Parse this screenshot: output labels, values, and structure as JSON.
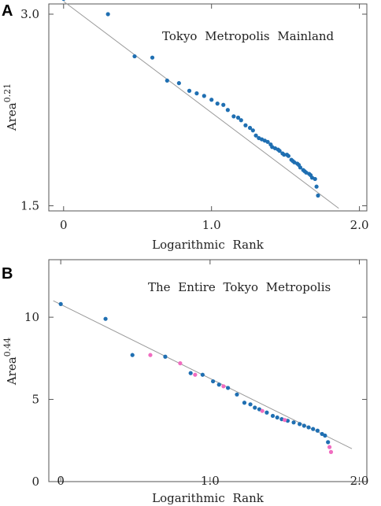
{
  "colors": {
    "blue": "#1f6fb2",
    "pink": "#f06cc0",
    "line": "#9a9a9a",
    "frame": "#555555"
  },
  "chart_data": [
    {
      "panel": "A",
      "type": "scatter",
      "title": "Tokyo Metropolis Mainland",
      "xlabel": "Logarithmic Rank",
      "ylabel_base": "Area",
      "ylabel_exp": "0.21",
      "xlim": [
        -0.1,
        2.05
      ],
      "ylim": [
        1.46,
        3.08
      ],
      "xticks": [
        0,
        1.0,
        2.0
      ],
      "xtick_labels": [
        "0",
        "1.0",
        "2.0"
      ],
      "yticks": [
        3.0,
        1.5
      ],
      "ytick_labels": [
        "3.0",
        "1.5"
      ],
      "fit_line": [
        [
          0.0,
          3.1
        ],
        [
          1.86,
          1.48
        ]
      ],
      "series": [
        {
          "color": "blue",
          "points": [
            [
              0.0,
              3.12
            ],
            [
              0.3,
              3.0
            ],
            [
              0.48,
              2.67
            ],
            [
              0.6,
              2.66
            ],
            [
              0.7,
              2.48
            ],
            [
              0.78,
              2.46
            ],
            [
              0.85,
              2.4
            ],
            [
              0.9,
              2.38
            ],
            [
              0.95,
              2.36
            ],
            [
              1.0,
              2.33
            ],
            [
              1.04,
              2.3
            ],
            [
              1.08,
              2.29
            ],
            [
              1.11,
              2.25
            ],
            [
              1.15,
              2.2
            ],
            [
              1.18,
              2.19
            ],
            [
              1.2,
              2.17
            ],
            [
              1.23,
              2.13
            ],
            [
              1.26,
              2.11
            ],
            [
              1.28,
              2.09
            ],
            [
              1.3,
              2.05
            ],
            [
              1.32,
              2.03
            ],
            [
              1.34,
              2.02
            ],
            [
              1.36,
              2.01
            ],
            [
              1.38,
              2.0
            ],
            [
              1.4,
              1.98
            ],
            [
              1.41,
              1.96
            ],
            [
              1.43,
              1.95
            ],
            [
              1.45,
              1.94
            ],
            [
              1.46,
              1.93
            ],
            [
              1.48,
              1.91
            ],
            [
              1.49,
              1.9
            ],
            [
              1.51,
              1.9
            ],
            [
              1.52,
              1.89
            ],
            [
              1.54,
              1.86
            ],
            [
              1.55,
              1.85
            ],
            [
              1.56,
              1.84
            ],
            [
              1.58,
              1.83
            ],
            [
              1.59,
              1.82
            ],
            [
              1.6,
              1.8
            ],
            [
              1.62,
              1.78
            ],
            [
              1.63,
              1.77
            ],
            [
              1.64,
              1.76
            ],
            [
              1.66,
              1.75
            ],
            [
              1.67,
              1.74
            ],
            [
              1.68,
              1.72
            ],
            [
              1.7,
              1.71
            ],
            [
              1.71,
              1.65
            ],
            [
              1.72,
              1.58
            ]
          ]
        }
      ]
    },
    {
      "panel": "B",
      "type": "scatter",
      "title": "The Entire Tokyo Metropolis",
      "xlabel": "Logarithmic Rank",
      "ylabel_base": "Area",
      "ylabel_exp": "0.44",
      "xlim": [
        -0.08,
        2.05
      ],
      "ylim": [
        0,
        13.5
      ],
      "xticks": [
        0,
        1.0,
        2.0
      ],
      "xtick_labels": [
        "0",
        "1.0",
        "2.0"
      ],
      "yticks": [
        10,
        5,
        0
      ],
      "ytick_labels": [
        "10",
        "5",
        "0"
      ],
      "fit_line": [
        [
          -0.05,
          11.0
        ],
        [
          1.95,
          2.0
        ]
      ],
      "series": [
        {
          "color": "blue",
          "points": [
            [
              0.0,
              10.8
            ],
            [
              0.3,
              9.9
            ],
            [
              0.48,
              7.7
            ],
            [
              0.7,
              7.6
            ],
            [
              0.87,
              6.6
            ],
            [
              0.95,
              6.5
            ],
            [
              1.02,
              6.1
            ],
            [
              1.06,
              5.9
            ],
            [
              1.12,
              5.7
            ],
            [
              1.18,
              5.3
            ],
            [
              1.23,
              4.8
            ],
            [
              1.27,
              4.7
            ],
            [
              1.3,
              4.5
            ],
            [
              1.33,
              4.4
            ],
            [
              1.38,
              4.2
            ],
            [
              1.42,
              4.0
            ],
            [
              1.45,
              3.9
            ],
            [
              1.48,
              3.8
            ],
            [
              1.52,
              3.7
            ],
            [
              1.56,
              3.6
            ],
            [
              1.6,
              3.5
            ],
            [
              1.63,
              3.4
            ],
            [
              1.66,
              3.3
            ],
            [
              1.69,
              3.2
            ],
            [
              1.72,
              3.1
            ],
            [
              1.75,
              2.9
            ],
            [
              1.77,
              2.8
            ],
            [
              1.79,
              2.4
            ]
          ]
        },
        {
          "color": "pink",
          "points": [
            [
              0.6,
              7.7
            ],
            [
              0.8,
              7.2
            ],
            [
              0.9,
              6.5
            ],
            [
              1.09,
              5.8
            ],
            [
              1.35,
              4.3
            ],
            [
              1.5,
              3.75
            ],
            [
              1.8,
              2.1
            ],
            [
              1.81,
              1.8
            ]
          ]
        }
      ]
    }
  ]
}
